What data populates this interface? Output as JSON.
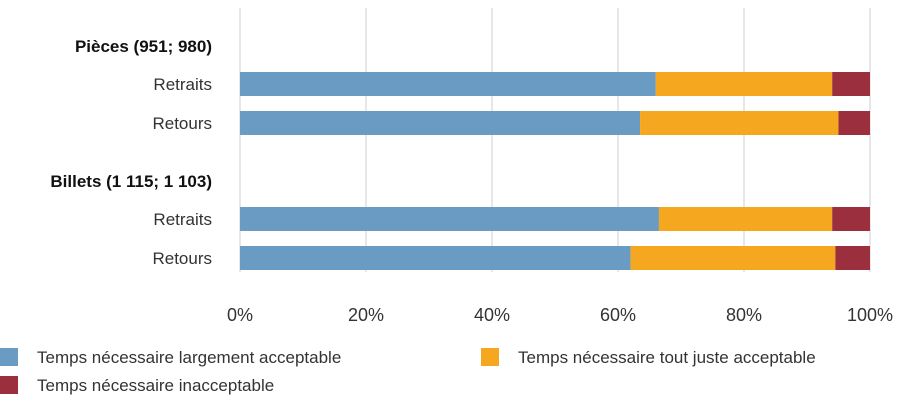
{
  "chart_data": {
    "type": "bar",
    "orientation": "horizontal",
    "stacked": true,
    "groups": [
      {
        "label": "Pièces (951; 980)",
        "rows": [
          {
            "label": "Retraits",
            "values": [
              66,
              28,
              6
            ]
          },
          {
            "label": "Retours",
            "values": [
              63.5,
              31.5,
              5
            ]
          }
        ]
      },
      {
        "label": "Billets (1 115; 1 103)",
        "rows": [
          {
            "label": "Retraits",
            "values": [
              66.5,
              27.5,
              6
            ]
          },
          {
            "label": "Retours",
            "values": [
              62,
              32.5,
              5.5
            ]
          }
        ]
      }
    ],
    "series": [
      {
        "name": "Temps nécessaire largement acceptable",
        "color": "#6a9bc3"
      },
      {
        "name": "Temps nécessaire tout juste acceptable",
        "color": "#f5a81f"
      },
      {
        "name": "Temps nécessaire inacceptable",
        "color": "#9b2f3d"
      }
    ],
    "xlim": [
      0,
      100
    ],
    "xticks": [
      "0%",
      "20%",
      "40%",
      "60%",
      "80%",
      "100%"
    ],
    "grid": true,
    "legend_position": "bottom"
  }
}
